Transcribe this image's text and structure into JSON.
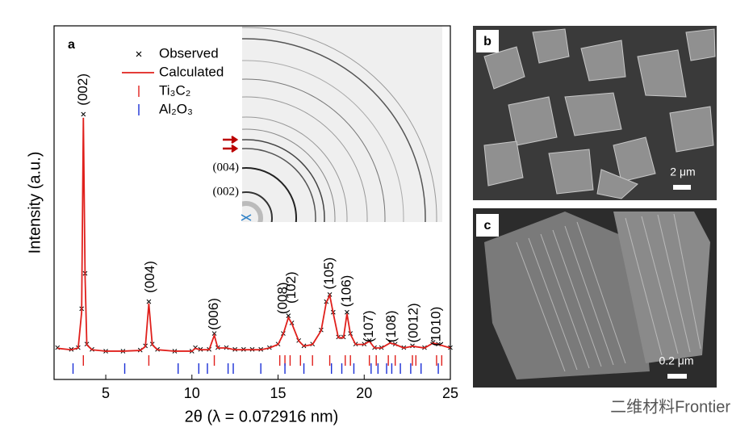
{
  "chart_data": {
    "type": "line",
    "panel_label": "a",
    "x_label": "2θ (λ = 0.072916 nm)",
    "y_label": "Intensity (a.u.)",
    "xlim": [
      2,
      25
    ],
    "xticks": [
      5,
      10,
      15,
      20,
      25
    ],
    "ylim": [
      0,
      100
    ],
    "legend": "upper-left",
    "x": [
      2.2,
      3.0,
      3.4,
      3.6,
      3.7,
      3.8,
      3.9,
      4.2,
      5,
      6,
      7,
      7.3,
      7.5,
      7.7,
      8,
      9,
      10,
      10.2,
      10.5,
      11,
      11.3,
      11.5,
      12,
      12.5,
      13,
      13.5,
      14,
      14.5,
      15,
      15.3,
      15.6,
      15.8,
      16.2,
      16.5,
      17,
      17.5,
      17.8,
      18,
      18.2,
      18.5,
      18.8,
      19,
      19.2,
      19.5,
      20,
      20.3,
      20.6,
      21,
      21.5,
      21.8,
      22.3,
      22.8,
      23.5,
      24,
      24.3,
      25
    ],
    "series": [
      {
        "name": "Observed",
        "color": "#000000",
        "marker": "x",
        "values": [
          9,
          8.5,
          9,
          20,
          75,
          30,
          10,
          8.5,
          8,
          8,
          8.3,
          9.5,
          22,
          10,
          8.5,
          8,
          8,
          9,
          8.5,
          8.5,
          13,
          9,
          9,
          8.5,
          8.5,
          8.5,
          8.5,
          9,
          10,
          13,
          18,
          16,
          11,
          9.5,
          10,
          14,
          22,
          24,
          19,
          12,
          12,
          19,
          13,
          10,
          10,
          11,
          9,
          9,
          10.5,
          10,
          9,
          9.5,
          9,
          10.5,
          10,
          9
        ]
      },
      {
        "name": "Calculated",
        "color": "#e0201c",
        "marker": "line",
        "values": [
          8.8,
          8.4,
          8.9,
          19,
          74,
          29,
          9.8,
          8.4,
          8,
          8,
          8.2,
          9.3,
          21.5,
          9.8,
          8.4,
          8,
          8,
          8.8,
          8.4,
          8.4,
          12.5,
          8.9,
          8.9,
          8.4,
          8.4,
          8.4,
          8.4,
          8.9,
          9.9,
          12.8,
          17.5,
          15.8,
          10.9,
          9.4,
          9.9,
          13.8,
          21.8,
          23.8,
          18.8,
          11.8,
          11.8,
          18.6,
          12.8,
          9.9,
          9.9,
          10.8,
          8.9,
          8.9,
          10.3,
          9.9,
          8.9,
          9.4,
          8.9,
          10.3,
          9.9,
          8.9
        ]
      }
    ],
    "reflections": [
      {
        "name": "Ti₃C₂",
        "color": "#e0201c",
        "x": [
          3.7,
          7.5,
          11.3,
          15.1,
          15.4,
          15.7,
          16.3,
          17.0,
          18.0,
          18.9,
          19.2,
          20.3,
          20.7,
          21.4,
          21.8,
          22.8,
          23.0,
          24.2,
          24.5
        ]
      },
      {
        "name": "Al₂O₃",
        "color": "#1a2fd6",
        "x": [
          3.1,
          6.1,
          9.2,
          10.4,
          10.9,
          12.1,
          12.4,
          14.0,
          15.4,
          16.5,
          18.1,
          18.7,
          19.4,
          20.4,
          20.8,
          21.3,
          21.6,
          22.1,
          22.7,
          23.3,
          24.3
        ]
      }
    ],
    "annotations": [
      {
        "text": "(002)",
        "x": 3.7,
        "y": 82
      },
      {
        "text": "(004)",
        "x": 7.6,
        "y": 29
      },
      {
        "text": "(006)",
        "x": 11.3,
        "y": 18.5
      },
      {
        "text": "(008)",
        "x": 15.3,
        "y": 23
      },
      {
        "text": "(102)",
        "x": 15.8,
        "y": 26
      },
      {
        "text": "(105)",
        "x": 18.0,
        "y": 30
      },
      {
        "text": "(106)",
        "x": 19.0,
        "y": 25
      },
      {
        "text": "(107)",
        "x": 20.3,
        "y": 15
      },
      {
        "text": "(108)",
        "x": 21.6,
        "y": 15
      },
      {
        "text": "(0012)",
        "x": 22.9,
        "y": 16
      },
      {
        "text": "(1010)",
        "x": 24.2,
        "y": 15
      }
    ],
    "inset_labels": [
      "(004)",
      "(002)"
    ]
  },
  "panels": [
    {
      "label": "b",
      "scale_bar": "2 μm"
    },
    {
      "label": "c",
      "scale_bar": "0.2 μm"
    }
  ],
  "watermark": "二维材料Frontier"
}
